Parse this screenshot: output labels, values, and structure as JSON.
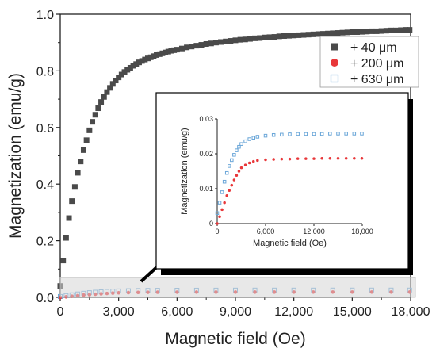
{
  "chart_data": [
    {
      "type": "scatter",
      "xlabel": "Magnetic field (Oe)",
      "ylabel": "Magnetization (emu/g)",
      "xlim": [
        0,
        18000
      ],
      "ylim": [
        0,
        1.0
      ],
      "x_ticks": [
        0,
        3000,
        6000,
        9000,
        12000,
        15000,
        18000
      ],
      "x_tick_labels": [
        "0",
        "3,000",
        "6,000",
        "9,000",
        "12,000",
        "15,000",
        "18,000"
      ],
      "y_ticks": [
        0.0,
        0.2,
        0.4,
        0.6,
        0.8,
        1.0
      ],
      "y_tick_labels": [
        "0.0",
        "0.2",
        "0.4",
        "0.6",
        "0.8",
        "1.0"
      ],
      "legend_position": "top-right",
      "series": [
        {
          "name": "+ 40 μm",
          "marker": "filled-square",
          "color": "#4a4a4a",
          "x": [
            0,
            150,
            300,
            450,
            600,
            750,
            900,
            1050,
            1200,
            1350,
            1500,
            1650,
            1800,
            1950,
            2100,
            2250,
            2400,
            2550,
            2700,
            2850,
            3000,
            3150,
            3300,
            3450,
            3600,
            3750,
            3900,
            4050,
            4200,
            4350,
            4500,
            4650,
            4800,
            4950,
            5100,
            5250,
            5400,
            5550,
            5700,
            5850,
            6000,
            6250,
            6500,
            6750,
            7000,
            7250,
            7500,
            7750,
            8000,
            8250,
            8500,
            8750,
            9000,
            9250,
            9500,
            9750,
            10000,
            10250,
            10500,
            10750,
            11000,
            11250,
            11500,
            11750,
            12000,
            12250,
            12500,
            12750,
            13000,
            13250,
            13500,
            13750,
            14000,
            14250,
            14500,
            14750,
            15000,
            15250,
            15500,
            15750,
            16000,
            16250,
            16500,
            16750,
            17000,
            17250,
            17500,
            17750,
            17950
          ],
          "y": [
            0.04,
            0.13,
            0.21,
            0.28,
            0.34,
            0.39,
            0.44,
            0.48,
            0.52,
            0.555,
            0.59,
            0.62,
            0.645,
            0.668,
            0.69,
            0.708,
            0.725,
            0.74,
            0.754,
            0.766,
            0.777,
            0.787,
            0.796,
            0.804,
            0.811,
            0.818,
            0.824,
            0.83,
            0.835,
            0.84,
            0.844,
            0.848,
            0.852,
            0.856,
            0.859,
            0.862,
            0.865,
            0.868,
            0.871,
            0.873,
            0.875,
            0.879,
            0.883,
            0.886,
            0.889,
            0.892,
            0.895,
            0.897,
            0.9,
            0.902,
            0.904,
            0.906,
            0.908,
            0.91,
            0.911,
            0.913,
            0.915,
            0.916,
            0.918,
            0.919,
            0.92,
            0.922,
            0.923,
            0.924,
            0.925,
            0.926,
            0.927,
            0.928,
            0.929,
            0.93,
            0.931,
            0.932,
            0.933,
            0.934,
            0.935,
            0.936,
            0.937,
            0.937,
            0.938,
            0.939,
            0.94,
            0.94,
            0.941,
            0.942,
            0.943,
            0.943,
            0.944,
            0.945,
            0.945
          ]
        },
        {
          "name": "+ 200 μm",
          "marker": "filled-circle",
          "color": "#e8373a",
          "x": [
            0,
            300,
            600,
            900,
            1200,
            1500,
            1800,
            2100,
            2400,
            2700,
            3000,
            3500,
            4000,
            4500,
            5000,
            6000,
            7000,
            8000,
            9000,
            10000,
            11000,
            12000,
            13000,
            14000,
            15000,
            16000,
            17000,
            17950
          ],
          "y": [
            0.0,
            0.002,
            0.004,
            0.006,
            0.008,
            0.0095,
            0.011,
            0.0125,
            0.0138,
            0.015,
            0.016,
            0.0168,
            0.0174,
            0.0178,
            0.0181,
            0.0183,
            0.0184,
            0.0185,
            0.0185,
            0.0186,
            0.0186,
            0.0186,
            0.0187,
            0.0187,
            0.0187,
            0.0187,
            0.0187,
            0.0187
          ]
        },
        {
          "name": "+ 630 μm",
          "marker": "open-square",
          "color": "#6aa6d8",
          "x": [
            0,
            300,
            600,
            900,
            1200,
            1500,
            1800,
            2100,
            2400,
            2700,
            3000,
            3500,
            4000,
            4500,
            5000,
            6000,
            7000,
            8000,
            9000,
            10000,
            11000,
            12000,
            13000,
            14000,
            15000,
            16000,
            17000,
            17950
          ],
          "y": [
            0.003,
            0.006,
            0.009,
            0.012,
            0.0145,
            0.0165,
            0.0182,
            0.0197,
            0.021,
            0.022,
            0.0228,
            0.0236,
            0.0242,
            0.0246,
            0.0249,
            0.0252,
            0.0254,
            0.0255,
            0.0256,
            0.0257,
            0.0257,
            0.0257,
            0.0257,
            0.0258,
            0.0258,
            0.0258,
            0.0258,
            0.0258
          ]
        }
      ]
    },
    {
      "type": "scatter",
      "role": "inset",
      "xlabel": "Magnetic field (Oe)",
      "ylabel": "Magnetization (emu/g)",
      "xlim": [
        0,
        18000
      ],
      "ylim": [
        0,
        0.03
      ],
      "x_ticks": [
        0,
        6000,
        12000,
        18000
      ],
      "x_tick_labels": [
        "0",
        "6,000",
        "12,000",
        "18,000"
      ],
      "y_ticks": [
        0.0,
        0.01,
        0.02,
        0.03
      ],
      "y_tick_labels": [
        "0",
        "0.01",
        "0.02",
        "0.03"
      ],
      "series": [
        {
          "marker": "filled-circle",
          "color": "#e8373a",
          "x": [
            0,
            300,
            600,
            900,
            1200,
            1500,
            1800,
            2100,
            2400,
            2700,
            3000,
            3500,
            4000,
            4500,
            5000,
            6000,
            7000,
            8000,
            9000,
            10000,
            11000,
            12000,
            13000,
            14000,
            15000,
            16000,
            17000,
            17950
          ],
          "y": [
            0.0,
            0.002,
            0.004,
            0.006,
            0.008,
            0.0095,
            0.011,
            0.0125,
            0.0138,
            0.015,
            0.016,
            0.0168,
            0.0174,
            0.0178,
            0.0181,
            0.0183,
            0.0184,
            0.0185,
            0.0185,
            0.0186,
            0.0186,
            0.0186,
            0.0187,
            0.0187,
            0.0187,
            0.0187,
            0.0187,
            0.0187
          ]
        },
        {
          "marker": "open-square",
          "color": "#6aa6d8",
          "x": [
            0,
            300,
            600,
            900,
            1200,
            1500,
            1800,
            2100,
            2400,
            2700,
            3000,
            3500,
            4000,
            4500,
            5000,
            6000,
            7000,
            8000,
            9000,
            10000,
            11000,
            12000,
            13000,
            14000,
            15000,
            16000,
            17000,
            17950
          ],
          "y": [
            0.003,
            0.006,
            0.009,
            0.012,
            0.0145,
            0.0165,
            0.0182,
            0.0197,
            0.021,
            0.022,
            0.0228,
            0.0236,
            0.0242,
            0.0246,
            0.0249,
            0.0252,
            0.0254,
            0.0255,
            0.0256,
            0.0257,
            0.0257,
            0.0257,
            0.0257,
            0.0258,
            0.0258,
            0.0258,
            0.0258,
            0.0258
          ]
        }
      ]
    }
  ]
}
